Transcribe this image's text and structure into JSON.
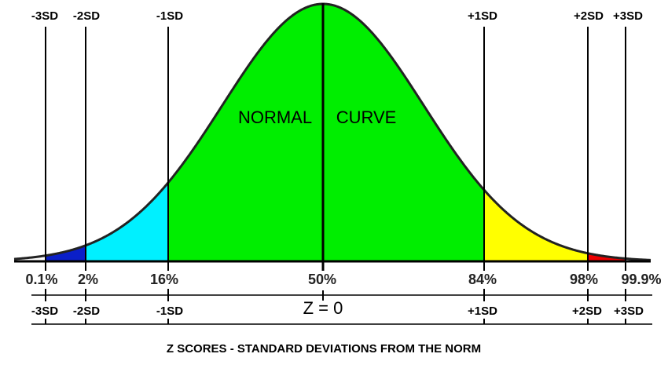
{
  "top_labels": [
    "-3SD",
    "-2SD",
    "-1SD",
    "+1SD",
    "+2SD",
    "+3SD"
  ],
  "curve_label": [
    "NORMAL",
    "CURVE"
  ],
  "percent_labels": [
    "0.1%",
    "2%",
    "16%",
    "50%",
    "84%",
    "98%",
    "99.9%"
  ],
  "bottom_labels": [
    "-3SD",
    "-2SD",
    "-1SD",
    "Z = 0",
    "+1SD",
    "+2SD",
    "+3SD"
  ],
  "caption": "Z SCORES - STANDARD DEVIATIONS FROM THE NORM"
}
